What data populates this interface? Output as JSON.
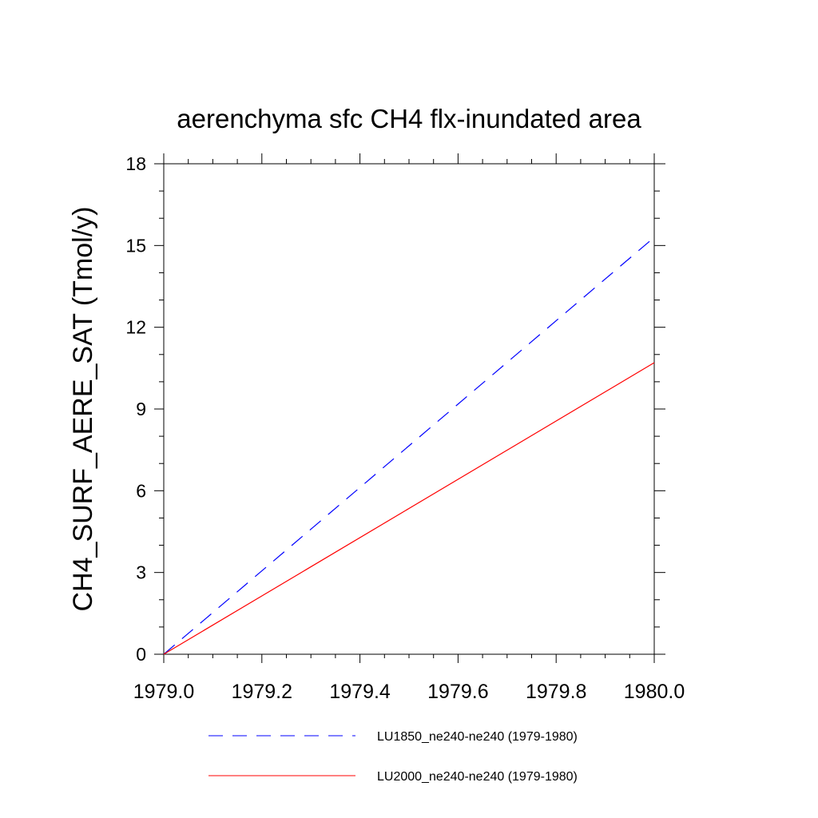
{
  "chart_data": {
    "type": "line",
    "title": "aerenchyma sfc CH4 flx-inundated area",
    "xlabel": "",
    "ylabel": "CH4_SURF_AERE_SAT  (Tmol/y)",
    "xlim": [
      1979.0,
      1980.0
    ],
    "ylim": [
      0,
      18
    ],
    "xticks": [
      "1979.0",
      "1979.2",
      "1979.4",
      "1979.6",
      "1979.8",
      "1980.0"
    ],
    "yticks": [
      "0",
      "3",
      "6",
      "9",
      "12",
      "15",
      "18"
    ],
    "grid": false,
    "legend_position": "bottom",
    "series": [
      {
        "name": "LU1850_ne240-ne240 (1979-1980)",
        "color": "#0000ff",
        "dash": "dashed",
        "x": [
          1979.0,
          1980.0
        ],
        "y": [
          0,
          15.3
        ]
      },
      {
        "name": "LU2000_ne240-ne240 (1979-1980)",
        "color": "#ff0000",
        "dash": "solid",
        "x": [
          1979.0,
          1980.0
        ],
        "y": [
          0,
          10.7
        ]
      }
    ]
  }
}
